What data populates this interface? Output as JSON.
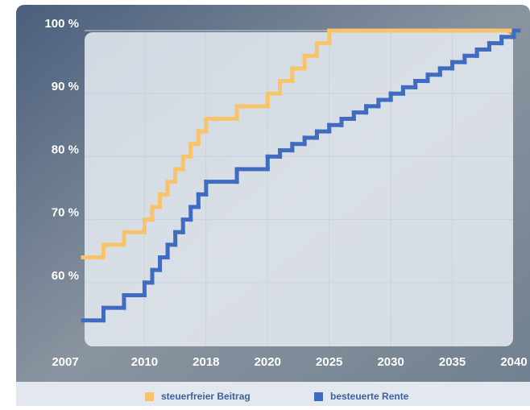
{
  "chart_data": {
    "type": "step",
    "x": [
      2007,
      2008,
      2009,
      2010,
      2011,
      2012,
      2013,
      2014,
      2015,
      2016,
      2017,
      2018,
      2019,
      2020,
      2021,
      2022,
      2023,
      2024,
      2025,
      2026,
      2027,
      2028,
      2029,
      2030,
      2031,
      2032,
      2033,
      2034,
      2035,
      2036,
      2037,
      2038,
      2039,
      2040
    ],
    "series": [
      {
        "name": "steuerfreier Beitrag",
        "color": "#f7c46c",
        "values": [
          64,
          66,
          68,
          70,
          72,
          74,
          76,
          78,
          80,
          82,
          84,
          86,
          88,
          90,
          92,
          94,
          96,
          98,
          100,
          100,
          100,
          100,
          100,
          100,
          100,
          100,
          100,
          100,
          100,
          100,
          100,
          100,
          100,
          100
        ]
      },
      {
        "name": "besteuerte Rente",
        "color": "#3f6cc0",
        "values": [
          54,
          56,
          58,
          60,
          62,
          64,
          66,
          68,
          70,
          72,
          74,
          76,
          78,
          80,
          81,
          82,
          83,
          84,
          85,
          86,
          87,
          88,
          89,
          90,
          91,
          92,
          93,
          94,
          95,
          96,
          97,
          98,
          99,
          100
        ]
      }
    ],
    "ylim": [
      50,
      100
    ],
    "yticks": [
      {
        "value": 60,
        "label": "60 %"
      },
      {
        "value": 70,
        "label": "70 %"
      },
      {
        "value": 80,
        "label": "80 %"
      },
      {
        "value": 90,
        "label": "90 %"
      },
      {
        "value": 100,
        "label": "100 %"
      }
    ],
    "xticks": [
      2007,
      2010,
      2018,
      2020,
      2025,
      2030,
      2035,
      2040
    ],
    "grid": true
  }
}
